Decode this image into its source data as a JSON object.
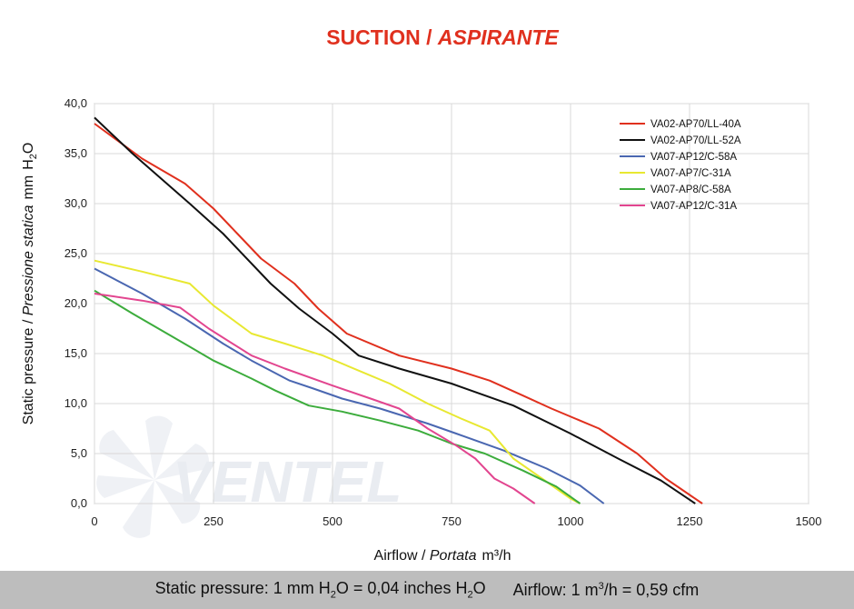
{
  "chart_data": {
    "type": "line",
    "title_main": "SUCTION",
    "title_sep": " / ",
    "title_italic": "ASPIRANTE",
    "xlabel": {
      "plain": "Airflow",
      "sep": " / ",
      "italic": "Portata",
      "unit": "m³/h"
    },
    "ylabel": {
      "plain": "Static pressure",
      "sep": " / ",
      "italic": "Pressione statica",
      "unit_a": "mm",
      "unit_b": "H",
      "unit_sub": "2",
      "unit_c": "O"
    },
    "xlim": [
      0,
      1500
    ],
    "ylim": [
      0,
      40
    ],
    "xticks": [
      0,
      250,
      500,
      750,
      1000,
      1250,
      1500
    ],
    "xtick_labels": [
      "0",
      "250",
      "500",
      "750",
      "1000",
      "1250",
      "1500"
    ],
    "yticks": [
      0,
      5,
      10,
      15,
      20,
      25,
      30,
      35,
      40
    ],
    "ytick_labels": [
      "0,0",
      "5,0",
      "10,0",
      "15,0",
      "20,0",
      "25,0",
      "30,0",
      "35,0",
      "40,0"
    ],
    "grid": true,
    "legend_position": "top-right",
    "series": [
      {
        "name": "VA02-AP70/LL-40A",
        "color": "#e0301e",
        "x": [
          0,
          100,
          190,
          250,
          300,
          350,
          420,
          470,
          530,
          640,
          750,
          830,
          900,
          960,
          1060,
          1140,
          1200,
          1277
        ],
        "y": [
          38.0,
          34.5,
          32.0,
          29.5,
          27.0,
          24.5,
          22.0,
          19.5,
          17.0,
          14.8,
          13.5,
          12.3,
          10.8,
          9.5,
          7.5,
          5.0,
          2.5,
          0.0
        ]
      },
      {
        "name": "VA02-AP70/LL-52A",
        "color": "#111111",
        "x": [
          0,
          80,
          200,
          270,
          370,
          430,
          500,
          555,
          640,
          750,
          880,
          1000,
          1100,
          1190,
          1262
        ],
        "y": [
          38.6,
          35.0,
          30.0,
          27.0,
          22.0,
          19.5,
          17.0,
          14.8,
          13.5,
          12.0,
          9.8,
          7.0,
          4.5,
          2.3,
          0.0
        ]
      },
      {
        "name": "VA07-AP12/C-58A",
        "color": "#4a67b1",
        "x": [
          0,
          100,
          190,
          270,
          330,
          410,
          460,
          520,
          600,
          700,
          760,
          860,
          950,
          1020,
          1070
        ],
        "y": [
          23.5,
          21.0,
          18.5,
          16.0,
          14.3,
          12.3,
          11.5,
          10.5,
          9.5,
          8.0,
          7.0,
          5.3,
          3.5,
          1.8,
          0.0
        ]
      },
      {
        "name": "VA07-AP7/C-31A",
        "color": "#e8e831",
        "x": [
          0,
          100,
          200,
          250,
          330,
          400,
          480,
          560,
          620,
          700,
          770,
          830,
          880,
          940,
          1000,
          1020
        ],
        "y": [
          24.3,
          23.2,
          22.0,
          19.8,
          17.0,
          16.0,
          14.8,
          13.2,
          12.0,
          10.0,
          8.5,
          7.3,
          4.5,
          2.5,
          0.5,
          0.0
        ]
      },
      {
        "name": "VA07-AP8/C-58A",
        "color": "#3cac3c",
        "x": [
          0,
          80,
          160,
          250,
          330,
          380,
          450,
          520,
          600,
          680,
          750,
          820,
          900,
          970,
          1020
        ],
        "y": [
          21.3,
          19.0,
          16.8,
          14.3,
          12.5,
          11.3,
          9.8,
          9.2,
          8.3,
          7.3,
          6.0,
          5.0,
          3.3,
          1.7,
          0.0
        ]
      },
      {
        "name": "VA07-AP12/C-31A",
        "color": "#e2458f",
        "x": [
          0,
          100,
          180,
          240,
          330,
          400,
          500,
          580,
          640,
          700,
          760,
          800,
          840,
          880,
          925
        ],
        "y": [
          21.0,
          20.3,
          19.6,
          17.5,
          14.8,
          13.5,
          11.8,
          10.5,
          9.5,
          7.5,
          5.8,
          4.5,
          2.5,
          1.5,
          0.0
        ]
      }
    ]
  },
  "footer": {
    "pressure_prefix": "Static pressure: 1 mm H",
    "pressure_sub": "2",
    "pressure_mid": "O = 0,04 inches H",
    "pressure_sub2": "2",
    "pressure_end": "O",
    "airflow_prefix": "Airflow: 1 m",
    "airflow_sup": "3",
    "airflow_end": "/h = 0,59 cfm"
  },
  "watermark": {
    "text": "VENTEL"
  }
}
